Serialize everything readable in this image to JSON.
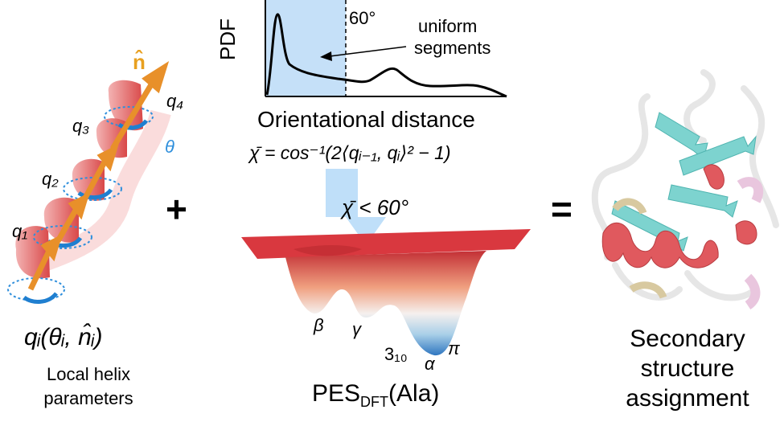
{
  "left": {
    "n_label": "n̂",
    "q4": "q₄",
    "q3": "q₃",
    "theta": "θ",
    "q2": "q₂",
    "q1": "q₁",
    "formula": "qᵢ(θᵢ, n̂ᵢ)",
    "caption_line1": "Local helix",
    "caption_line2": "parameters",
    "colors": {
      "helix": "#e05a5a",
      "arrow": "#e8902a",
      "rotation": "#2f8fdc",
      "n_hat": "#e8a020"
    }
  },
  "operators": {
    "plus": "+",
    "equals": "="
  },
  "top_plot": {
    "ylabel": "PDF",
    "threshold": "60°",
    "annotation_line1": "uniform",
    "annotation_line2": "segments",
    "xlabel": "Orientational distance",
    "formula": "χ̄ = cos⁻¹(2⟨qᵢ₋₁, qᵢ⟩² − 1)",
    "colors": {
      "shade": "#c5e0f8",
      "curve": "#000000"
    }
  },
  "center": {
    "condition": "χ̄ < 60°",
    "labels": {
      "beta": "β",
      "gamma": "γ",
      "three_ten": "3₁₀",
      "alpha": "α",
      "pi": "π"
    },
    "caption_main": "PES",
    "caption_sub": "DFT",
    "caption_tail": "(Ala)",
    "colors": {
      "surface_top": "#d9383f",
      "well_bottom": "#2f76c0",
      "arrow": "#b8dcf8"
    }
  },
  "right": {
    "caption_line1": "Secondary",
    "caption_line2": "structure",
    "caption_line3": "assignment",
    "colors": {
      "helix": "#e0595e",
      "sheet": "#7dd3cf",
      "coil": "#e6e6e6",
      "turn": "#d8c9a0",
      "pink": "#e9c6de"
    }
  }
}
